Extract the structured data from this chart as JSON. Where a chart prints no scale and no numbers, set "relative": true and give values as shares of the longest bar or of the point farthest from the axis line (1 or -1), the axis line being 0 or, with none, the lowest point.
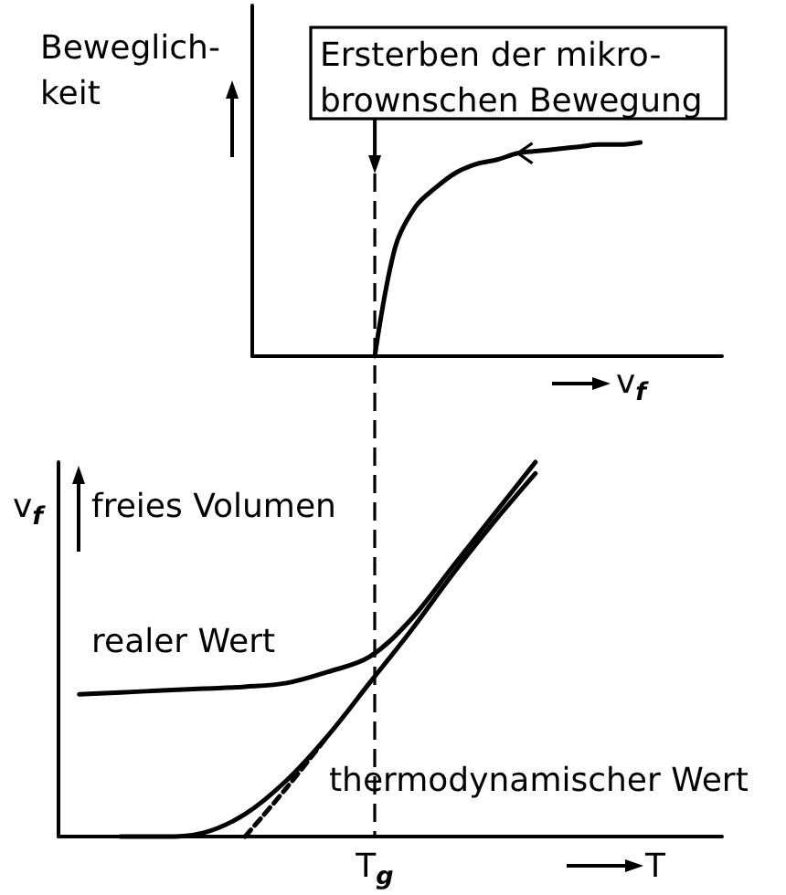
{
  "chart_data": [
    {
      "type": "line",
      "relative": true,
      "ylabel": "Beweglich-\nkeit",
      "xlabel": "v$_{f}$",
      "annotations": [
        "Ersterben der mikro-\nbrownschen Bewegung"
      ],
      "categories": [
        null,
        null,
        null,
        null,
        null,
        null,
        null,
        null,
        null,
        null,
        null,
        null,
        null,
        null,
        null,
        null,
        null,
        null,
        null,
        null,
        null,
        null,
        null,
        null
      ],
      "series": [
        {
          "color": "#000000",
          "values": [
            null,
            null,
            null,
            null,
            null,
            null,
            0,
            0.51,
            0.7,
            0.79,
            0.86,
            0.9,
            0.92,
            0.95,
            0.96,
            0.97,
            0.98,
            0.99,
            0.99,
            1.0,
            null,
            null,
            null,
            null
          ]
        }
      ]
    },
    {
      "type": "line",
      "relative": true,
      "ylabel": "freies Volumen",
      "xlabel": "T",
      "annotations": [
        "v$_{f}$",
        "T$_{g}$"
      ],
      "categories": [
        null,
        null,
        null,
        null,
        null,
        null,
        null,
        null,
        null,
        null,
        null,
        null,
        null,
        null,
        null,
        null
      ],
      "series": [
        {
          "name": "realer Wert",
          "color": "#000000",
          "values": [
            0.38,
            0.385,
            0.39,
            0.395,
            0.4,
            0.41,
            0.44,
            0.48,
            0.58,
            0.72,
            0.86,
            1.0,
            null,
            null,
            null,
            null
          ]
        },
        {
          "name": "thermodynamischer Wert",
          "color": "#000000",
          "values": [
            null,
            0,
            0,
            0.01,
            0.06,
            0.15,
            0.27,
            0.41,
            0.55,
            0.7,
            0.84,
            0.97,
            null,
            null,
            null,
            null
          ]
        },
        {
          "color": "#000000",
          "line_style": "dashed",
          "values": [
            null,
            null,
            null,
            null,
            0,
            0.13,
            0.27,
            null,
            null,
            null,
            null,
            null,
            null,
            null,
            null,
            null
          ]
        }
      ]
    }
  ]
}
